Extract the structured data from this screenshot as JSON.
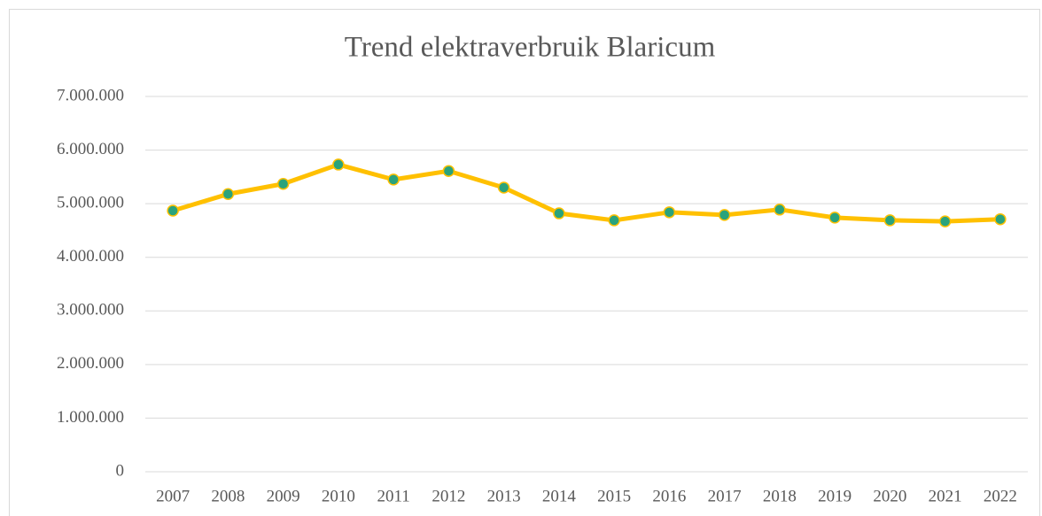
{
  "chart_data": {
    "type": "line",
    "title": "Trend elektraverbruik Blaricum",
    "categories": [
      "2007",
      "2008",
      "2009",
      "2010",
      "2011",
      "2012",
      "2013",
      "2014",
      "2015",
      "2016",
      "2017",
      "2018",
      "2019",
      "2020",
      "2021",
      "2022"
    ],
    "series": [
      {
        "name": "elektraverbruik",
        "color": "#ffc000",
        "marker_color": "#2aa37c",
        "values": [
          4870000,
          5180000,
          5370000,
          5730000,
          5450000,
          5610000,
          5300000,
          4820000,
          4690000,
          4840000,
          4790000,
          4890000,
          4740000,
          4690000,
          4670000,
          4710000
        ]
      }
    ],
    "ylim": [
      0,
      7000000
    ],
    "yticks": [
      0,
      {
        "value": 1000000,
        "label": "1.000.000"
      },
      {
        "value": 2000000,
        "label": "2.000.000"
      },
      {
        "value": 3000000,
        "label": "3.000.000"
      },
      {
        "value": 4000000,
        "label": "4.000.000"
      },
      {
        "value": 5000000,
        "label": "5.000.000"
      },
      {
        "value": 6000000,
        "label": "6.000.000"
      },
      {
        "value": 7000000,
        "label": "7.000.000"
      }
    ],
    "grid": true
  }
}
